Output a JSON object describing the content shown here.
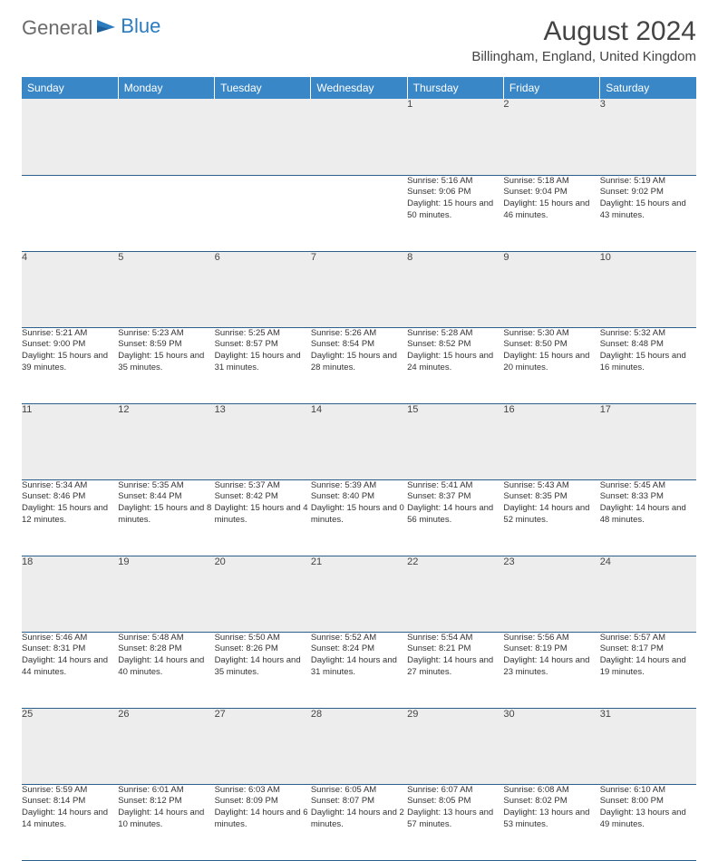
{
  "logo": {
    "text1": "General",
    "text2": "Blue"
  },
  "title": "August 2024",
  "location": "Billingham, England, United Kingdom",
  "colors": {
    "header_bg": "#3a87c8",
    "header_text": "#ffffff",
    "daynum_bg": "#ededed",
    "cell_border": "#2b5f8a",
    "logo_blue": "#2b7bbf",
    "logo_gray": "#6b6b6b",
    "body_bg": "#ffffff"
  },
  "typography": {
    "title_fontsize": 30,
    "location_fontsize": 15,
    "dayheader_fontsize": 12,
    "daynum_fontsize": 11,
    "cell_fontsize": 9.5
  },
  "day_headers": [
    "Sunday",
    "Monday",
    "Tuesday",
    "Wednesday",
    "Thursday",
    "Friday",
    "Saturday"
  ],
  "weeks": [
    [
      null,
      null,
      null,
      null,
      {
        "d": "1",
        "sr": "5:16 AM",
        "ss": "9:06 PM",
        "dl": "15 hours and 50 minutes."
      },
      {
        "d": "2",
        "sr": "5:18 AM",
        "ss": "9:04 PM",
        "dl": "15 hours and 46 minutes."
      },
      {
        "d": "3",
        "sr": "5:19 AM",
        "ss": "9:02 PM",
        "dl": "15 hours and 43 minutes."
      }
    ],
    [
      {
        "d": "4",
        "sr": "5:21 AM",
        "ss": "9:00 PM",
        "dl": "15 hours and 39 minutes."
      },
      {
        "d": "5",
        "sr": "5:23 AM",
        "ss": "8:59 PM",
        "dl": "15 hours and 35 minutes."
      },
      {
        "d": "6",
        "sr": "5:25 AM",
        "ss": "8:57 PM",
        "dl": "15 hours and 31 minutes."
      },
      {
        "d": "7",
        "sr": "5:26 AM",
        "ss": "8:54 PM",
        "dl": "15 hours and 28 minutes."
      },
      {
        "d": "8",
        "sr": "5:28 AM",
        "ss": "8:52 PM",
        "dl": "15 hours and 24 minutes."
      },
      {
        "d": "9",
        "sr": "5:30 AM",
        "ss": "8:50 PM",
        "dl": "15 hours and 20 minutes."
      },
      {
        "d": "10",
        "sr": "5:32 AM",
        "ss": "8:48 PM",
        "dl": "15 hours and 16 minutes."
      }
    ],
    [
      {
        "d": "11",
        "sr": "5:34 AM",
        "ss": "8:46 PM",
        "dl": "15 hours and 12 minutes."
      },
      {
        "d": "12",
        "sr": "5:35 AM",
        "ss": "8:44 PM",
        "dl": "15 hours and 8 minutes."
      },
      {
        "d": "13",
        "sr": "5:37 AM",
        "ss": "8:42 PM",
        "dl": "15 hours and 4 minutes."
      },
      {
        "d": "14",
        "sr": "5:39 AM",
        "ss": "8:40 PM",
        "dl": "15 hours and 0 minutes."
      },
      {
        "d": "15",
        "sr": "5:41 AM",
        "ss": "8:37 PM",
        "dl": "14 hours and 56 minutes."
      },
      {
        "d": "16",
        "sr": "5:43 AM",
        "ss": "8:35 PM",
        "dl": "14 hours and 52 minutes."
      },
      {
        "d": "17",
        "sr": "5:45 AM",
        "ss": "8:33 PM",
        "dl": "14 hours and 48 minutes."
      }
    ],
    [
      {
        "d": "18",
        "sr": "5:46 AM",
        "ss": "8:31 PM",
        "dl": "14 hours and 44 minutes."
      },
      {
        "d": "19",
        "sr": "5:48 AM",
        "ss": "8:28 PM",
        "dl": "14 hours and 40 minutes."
      },
      {
        "d": "20",
        "sr": "5:50 AM",
        "ss": "8:26 PM",
        "dl": "14 hours and 35 minutes."
      },
      {
        "d": "21",
        "sr": "5:52 AM",
        "ss": "8:24 PM",
        "dl": "14 hours and 31 minutes."
      },
      {
        "d": "22",
        "sr": "5:54 AM",
        "ss": "8:21 PM",
        "dl": "14 hours and 27 minutes."
      },
      {
        "d": "23",
        "sr": "5:56 AM",
        "ss": "8:19 PM",
        "dl": "14 hours and 23 minutes."
      },
      {
        "d": "24",
        "sr": "5:57 AM",
        "ss": "8:17 PM",
        "dl": "14 hours and 19 minutes."
      }
    ],
    [
      {
        "d": "25",
        "sr": "5:59 AM",
        "ss": "8:14 PM",
        "dl": "14 hours and 14 minutes."
      },
      {
        "d": "26",
        "sr": "6:01 AM",
        "ss": "8:12 PM",
        "dl": "14 hours and 10 minutes."
      },
      {
        "d": "27",
        "sr": "6:03 AM",
        "ss": "8:09 PM",
        "dl": "14 hours and 6 minutes."
      },
      {
        "d": "28",
        "sr": "6:05 AM",
        "ss": "8:07 PM",
        "dl": "14 hours and 2 minutes."
      },
      {
        "d": "29",
        "sr": "6:07 AM",
        "ss": "8:05 PM",
        "dl": "13 hours and 57 minutes."
      },
      {
        "d": "30",
        "sr": "6:08 AM",
        "ss": "8:02 PM",
        "dl": "13 hours and 53 minutes."
      },
      {
        "d": "31",
        "sr": "6:10 AM",
        "ss": "8:00 PM",
        "dl": "13 hours and 49 minutes."
      }
    ]
  ],
  "labels": {
    "sunrise": "Sunrise: ",
    "sunset": "Sunset: ",
    "daylight": "Daylight: "
  }
}
